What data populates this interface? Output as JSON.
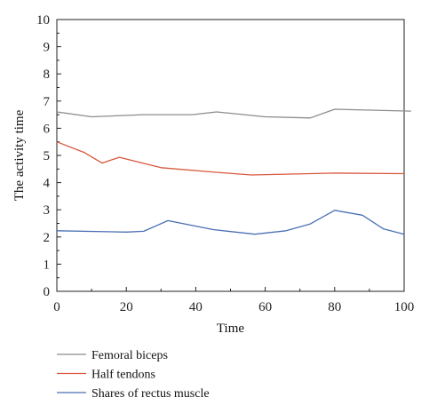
{
  "chart_data": {
    "type": "line",
    "title": "",
    "xlabel": "Time",
    "ylabel": "The activity time",
    "xlim": [
      0,
      100
    ],
    "ylim": [
      0,
      10
    ],
    "xticks": [
      0,
      20,
      40,
      60,
      80,
      100
    ],
    "yticks": [
      0,
      1,
      2,
      3,
      4,
      5,
      6,
      7,
      8,
      9,
      10
    ],
    "grid": false,
    "legend_position": "bottom-left",
    "series": [
      {
        "name": "Femoral biceps",
        "color": "#8c8c8c",
        "points": [
          [
            0,
            6.6
          ],
          [
            10,
            6.42
          ],
          [
            25,
            6.5
          ],
          [
            39,
            6.5
          ],
          [
            46,
            6.6
          ],
          [
            60,
            6.42
          ],
          [
            73,
            6.38
          ],
          [
            80,
            6.7
          ],
          [
            102,
            6.63
          ]
        ]
      },
      {
        "name": "Half tendons",
        "color": "#d9573c",
        "points": [
          [
            0,
            5.5
          ],
          [
            8,
            5.1
          ],
          [
            13,
            4.72
          ],
          [
            18,
            4.93
          ],
          [
            30,
            4.55
          ],
          [
            44,
            4.4
          ],
          [
            56,
            4.28
          ],
          [
            80,
            4.35
          ],
          [
            100,
            4.33
          ]
        ]
      },
      {
        "name": "Shares of rectus muscle",
        "color": "#4a6fb5",
        "points": [
          [
            0,
            2.23
          ],
          [
            20,
            2.18
          ],
          [
            25,
            2.21
          ],
          [
            32,
            2.6
          ],
          [
            45,
            2.27
          ],
          [
            57,
            2.1
          ],
          [
            66,
            2.23
          ],
          [
            73,
            2.48
          ],
          [
            80,
            2.98
          ],
          [
            88,
            2.8
          ],
          [
            94,
            2.3
          ],
          [
            100,
            2.1
          ]
        ]
      }
    ]
  }
}
